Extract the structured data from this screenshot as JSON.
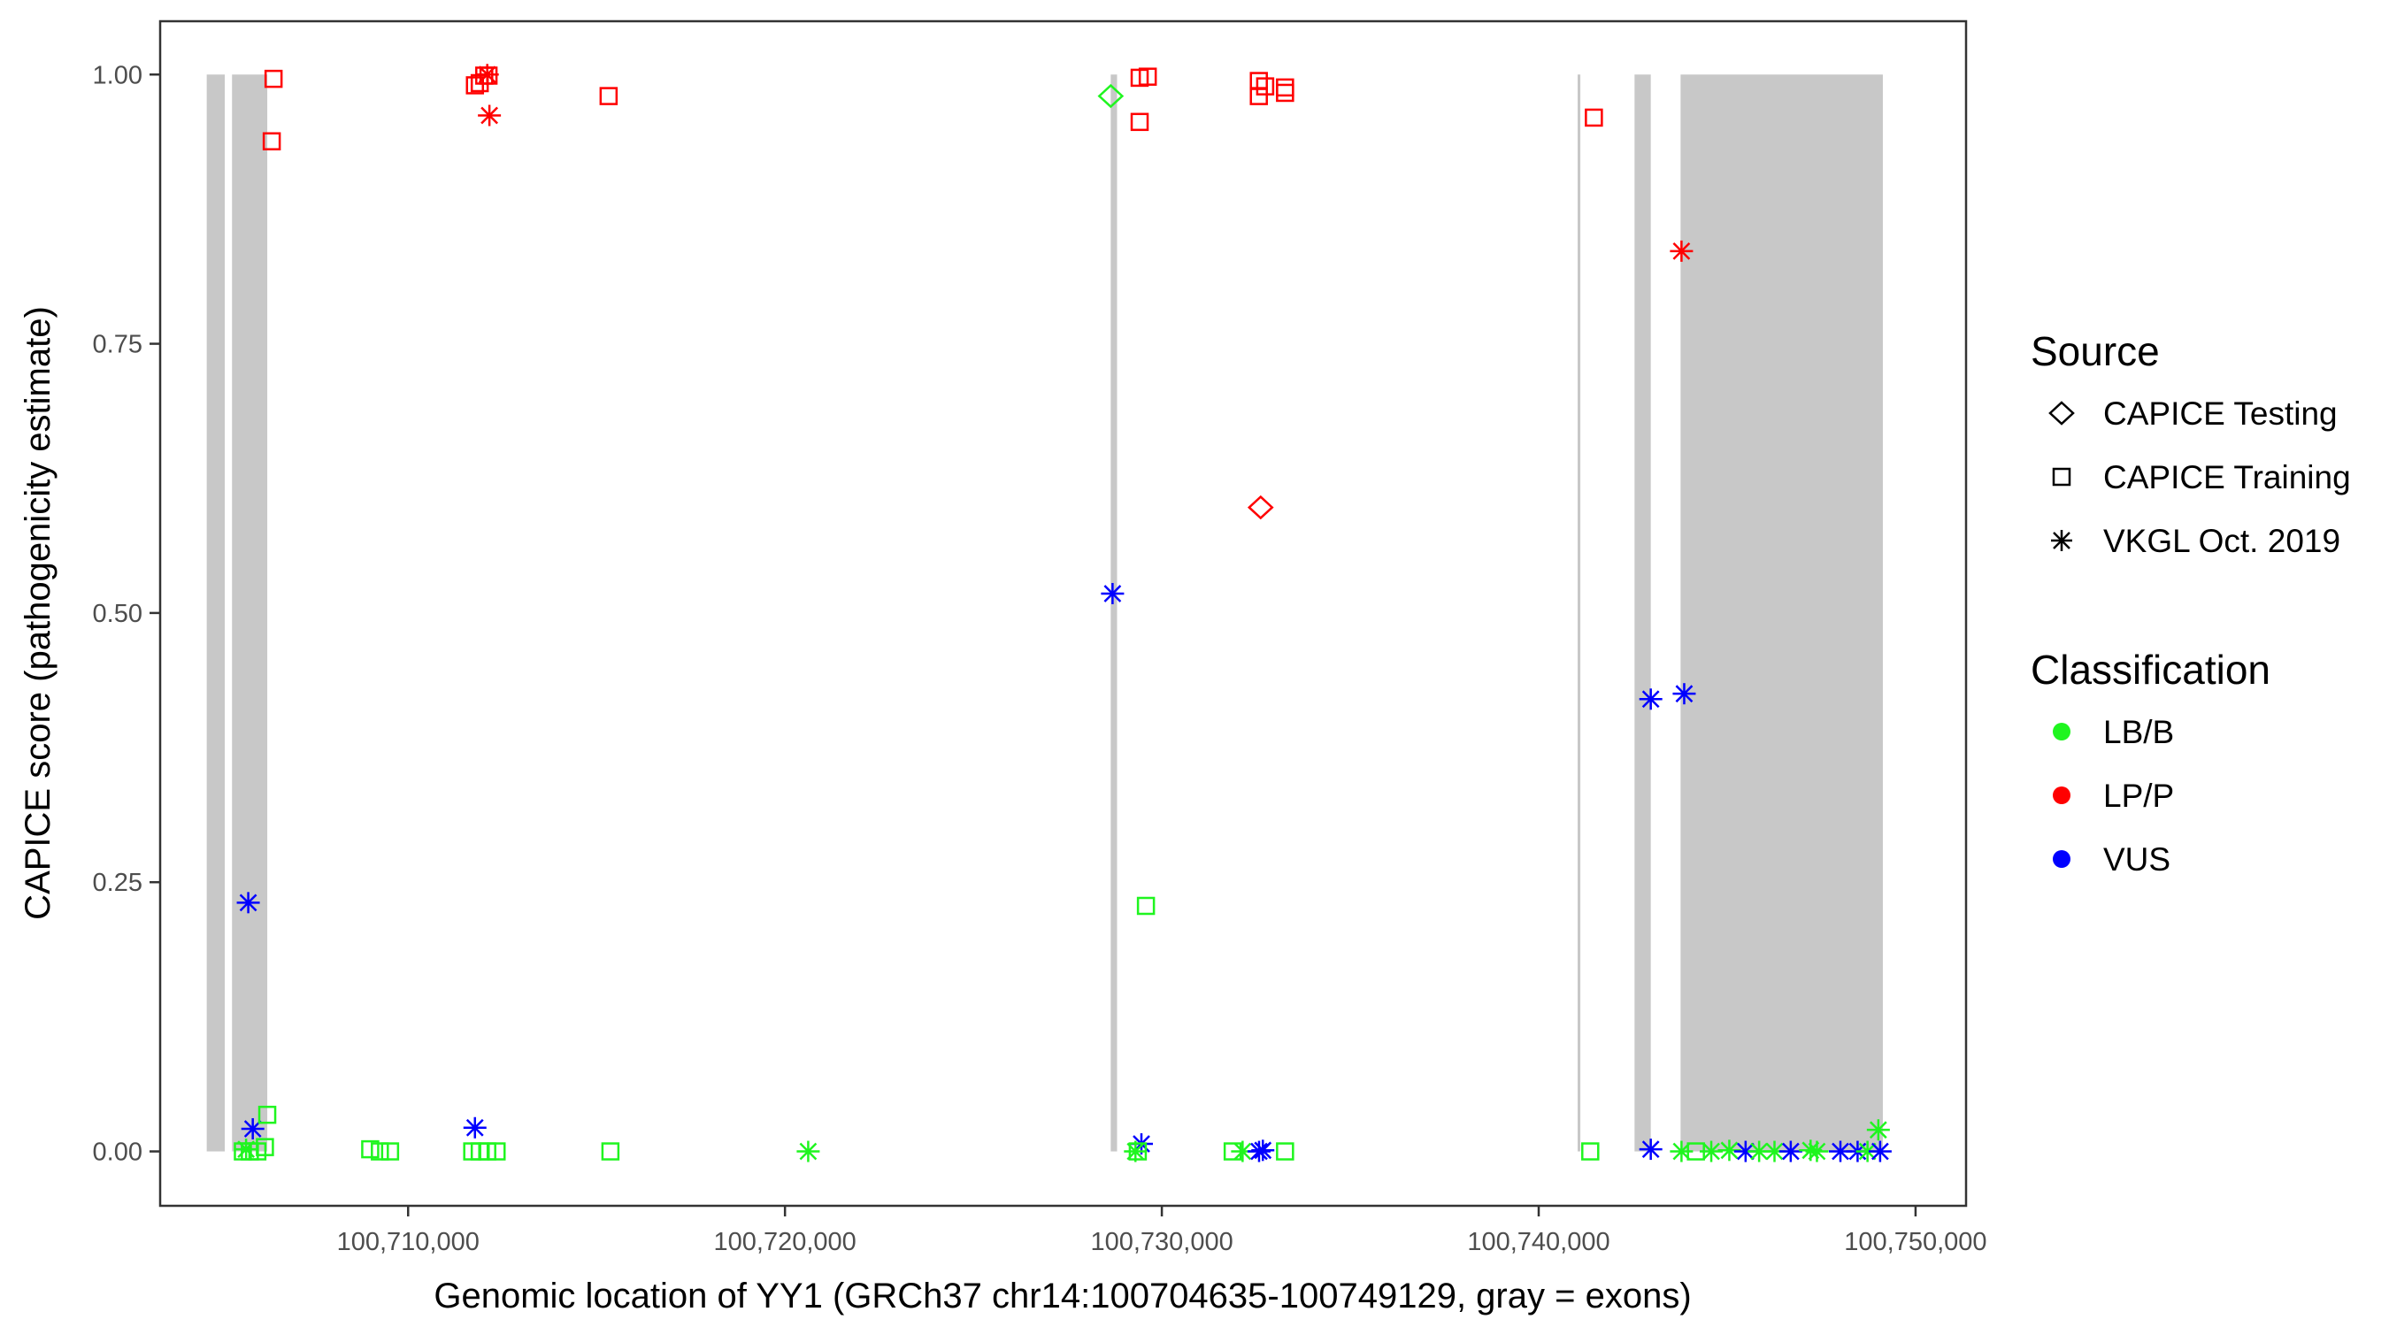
{
  "chart_data": {
    "type": "scatter",
    "xlabel": "Genomic location of YY1 (GRCh37 chr14:100704635-100749129, gray = exons)",
    "ylabel": "CAPICE score (pathogenicity estimate)",
    "xlim": [
      100703420,
      100751340
    ],
    "ylim": [
      -0.0505,
      1.0495
    ],
    "x_ticks": [
      100710000,
      100720000,
      100730000,
      100740000,
      100750000
    ],
    "x_tick_labels": [
      "100,710,000",
      "100,720,000",
      "100,730,000",
      "100,740,000",
      "100,750,000"
    ],
    "y_ticks": [
      0,
      0.25,
      0.5,
      0.75,
      1.0
    ],
    "y_tick_labels": [
      "0.00",
      "0.25",
      "0.50",
      "0.75",
      "1.00"
    ],
    "grid": false,
    "exons": [
      [
        100704656,
        100705135
      ],
      [
        100705327,
        100706262
      ],
      [
        100728644,
        100728812
      ],
      [
        100741033,
        100741105
      ],
      [
        100742543,
        100742974
      ],
      [
        100743765,
        100749132
      ]
    ],
    "exon_color": "#c8c8c8",
    "legend": {
      "placement": "right",
      "source": {
        "title": "Source",
        "items": [
          {
            "key": "testing",
            "label": "CAPICE Testing",
            "shape": "diamond"
          },
          {
            "key": "training",
            "label": "CAPICE Training",
            "shape": "square"
          },
          {
            "key": "vkgl",
            "label": "VKGL Oct. 2019",
            "shape": "asterisk"
          }
        ]
      },
      "classification": {
        "title": "Classification",
        "items": [
          {
            "key": "LB/B",
            "label": "LB/B",
            "color": "#1ff51f"
          },
          {
            "key": "LP/P",
            "label": "LP/P",
            "color": "#ff0000"
          },
          {
            "key": "VUS",
            "label": "VUS",
            "color": "#0000ff"
          }
        ]
      }
    },
    "points": [
      {
        "x": 100706429,
        "y": 0.996,
        "src": "training",
        "cls": "LP/P"
      },
      {
        "x": 100706381,
        "y": 0.938,
        "src": "training",
        "cls": "LP/P"
      },
      {
        "x": 100711773,
        "y": 0.99,
        "src": "training",
        "cls": "LP/P"
      },
      {
        "x": 100711900,
        "y": 0.992,
        "src": "training",
        "cls": "LP/P"
      },
      {
        "x": 100712020,
        "y": 0.999,
        "src": "training",
        "cls": "LP/P"
      },
      {
        "x": 100712133,
        "y": 0.999,
        "src": "training",
        "cls": "LP/P"
      },
      {
        "x": 100712100,
        "y": 1.0,
        "src": "vkgl",
        "cls": "LP/P"
      },
      {
        "x": 100712157,
        "y": 0.962,
        "src": "vkgl",
        "cls": "LP/P"
      },
      {
        "x": 100715320,
        "y": 0.98,
        "src": "training",
        "cls": "LP/P"
      },
      {
        "x": 100705758,
        "y": 0.231,
        "src": "vkgl",
        "cls": "VUS"
      },
      {
        "x": 100705878,
        "y": 0.021,
        "src": "vkgl",
        "cls": "VUS"
      },
      {
        "x": 100706262,
        "y": 0.034,
        "src": "training",
        "cls": "LB/B"
      },
      {
        "x": 100705615,
        "y": 0.0,
        "src": "training",
        "cls": "LB/B"
      },
      {
        "x": 100705800,
        "y": 0.0,
        "src": "training",
        "cls": "LB/B"
      },
      {
        "x": 100706000,
        "y": 0.0,
        "src": "training",
        "cls": "LB/B"
      },
      {
        "x": 100706200,
        "y": 0.004,
        "src": "training",
        "cls": "LB/B"
      },
      {
        "x": 100705700,
        "y": 0.002,
        "src": "vkgl",
        "cls": "LB/B"
      },
      {
        "x": 100708994,
        "y": 0.002,
        "src": "training",
        "cls": "LB/B"
      },
      {
        "x": 100709250,
        "y": 0.0,
        "src": "training",
        "cls": "LB/B"
      },
      {
        "x": 100709521,
        "y": 0.0,
        "src": "training",
        "cls": "LB/B"
      },
      {
        "x": 100711773,
        "y": 0.022,
        "src": "vkgl",
        "cls": "VUS"
      },
      {
        "x": 100711701,
        "y": 0.0,
        "src": "training",
        "cls": "LB/B"
      },
      {
        "x": 100711900,
        "y": 0.0,
        "src": "training",
        "cls": "LB/B"
      },
      {
        "x": 100712100,
        "y": 0.0,
        "src": "training",
        "cls": "LB/B"
      },
      {
        "x": 100712348,
        "y": 0.0,
        "src": "training",
        "cls": "LB/B"
      },
      {
        "x": 100715368,
        "y": 0.0,
        "src": "training",
        "cls": "LB/B"
      },
      {
        "x": 100720616,
        "y": 0.0,
        "src": "vkgl",
        "cls": "LB/B"
      },
      {
        "x": 100728644,
        "y": 0.98,
        "src": "testing",
        "cls": "LB/B"
      },
      {
        "x": 100729411,
        "y": 0.997,
        "src": "training",
        "cls": "LP/P"
      },
      {
        "x": 100729626,
        "y": 0.998,
        "src": "training",
        "cls": "LP/P"
      },
      {
        "x": 100729411,
        "y": 0.956,
        "src": "training",
        "cls": "LP/P"
      },
      {
        "x": 100732574,
        "y": 0.994,
        "src": "training",
        "cls": "LP/P"
      },
      {
        "x": 100732574,
        "y": 0.98,
        "src": "training",
        "cls": "LP/P"
      },
      {
        "x": 100732742,
        "y": 0.989,
        "src": "training",
        "cls": "LP/P"
      },
      {
        "x": 100733269,
        "y": 0.988,
        "src": "training",
        "cls": "LP/P"
      },
      {
        "x": 100733269,
        "y": 0.983,
        "src": "training",
        "cls": "LP/P"
      },
      {
        "x": 100732622,
        "y": 0.598,
        "src": "testing",
        "cls": "LP/P"
      },
      {
        "x": 100728692,
        "y": 0.518,
        "src": "vkgl",
        "cls": "VUS"
      },
      {
        "x": 100729578,
        "y": 0.228,
        "src": "training",
        "cls": "LB/B"
      },
      {
        "x": 100729458,
        "y": 0.007,
        "src": "vkgl",
        "cls": "VUS"
      },
      {
        "x": 100729362,
        "y": 0.0,
        "src": "training",
        "cls": "LB/B"
      },
      {
        "x": 100729300,
        "y": 0.0,
        "src": "vkgl",
        "cls": "LB/B"
      },
      {
        "x": 100731879,
        "y": 0.0,
        "src": "training",
        "cls": "LB/B"
      },
      {
        "x": 100732143,
        "y": 0.0,
        "src": "vkgl",
        "cls": "LB/B"
      },
      {
        "x": 100732580,
        "y": 0.0,
        "src": "vkgl",
        "cls": "VUS"
      },
      {
        "x": 100732680,
        "y": 0.001,
        "src": "vkgl",
        "cls": "VUS"
      },
      {
        "x": 100733269,
        "y": 0.0,
        "src": "training",
        "cls": "LB/B"
      },
      {
        "x": 100741464,
        "y": 0.96,
        "src": "training",
        "cls": "LP/P"
      },
      {
        "x": 100741368,
        "y": 0.0,
        "src": "training",
        "cls": "LB/B"
      },
      {
        "x": 100742974,
        "y": 0.42,
        "src": "vkgl",
        "cls": "VUS"
      },
      {
        "x": 100742974,
        "y": 0.002,
        "src": "vkgl",
        "cls": "VUS"
      },
      {
        "x": 100743789,
        "y": 0.836,
        "src": "vkgl",
        "cls": "LP/P"
      },
      {
        "x": 100743861,
        "y": 0.425,
        "src": "vkgl",
        "cls": "VUS"
      },
      {
        "x": 100743789,
        "y": 0.0,
        "src": "vkgl",
        "cls": "LB/B"
      },
      {
        "x": 100744172,
        "y": 0.0,
        "src": "training",
        "cls": "LB/B"
      },
      {
        "x": 100744579,
        "y": 0.0,
        "src": "vkgl",
        "cls": "LB/B"
      },
      {
        "x": 100745058,
        "y": 0.001,
        "src": "vkgl",
        "cls": "LB/B"
      },
      {
        "x": 100745490,
        "y": 0.0,
        "src": "vkgl",
        "cls": "VUS"
      },
      {
        "x": 100745849,
        "y": 0.0,
        "src": "vkgl",
        "cls": "LB/B"
      },
      {
        "x": 100746257,
        "y": 0.0,
        "src": "vkgl",
        "cls": "LB/B"
      },
      {
        "x": 100746688,
        "y": 0.0,
        "src": "vkgl",
        "cls": "VUS"
      },
      {
        "x": 100747215,
        "y": 0.001,
        "src": "vkgl",
        "cls": "LB/B"
      },
      {
        "x": 100747383,
        "y": 0.0,
        "src": "vkgl",
        "cls": "LB/B"
      },
      {
        "x": 100748006,
        "y": 0.0,
        "src": "vkgl",
        "cls": "VUS"
      },
      {
        "x": 100748462,
        "y": 0.0,
        "src": "vkgl",
        "cls": "VUS"
      },
      {
        "x": 100748725,
        "y": 0.0,
        "src": "vkgl",
        "cls": "LB/B"
      },
      {
        "x": 100749012,
        "y": 0.02,
        "src": "vkgl",
        "cls": "LB/B"
      },
      {
        "x": 100749060,
        "y": 0.0,
        "src": "vkgl",
        "cls": "VUS"
      }
    ]
  }
}
